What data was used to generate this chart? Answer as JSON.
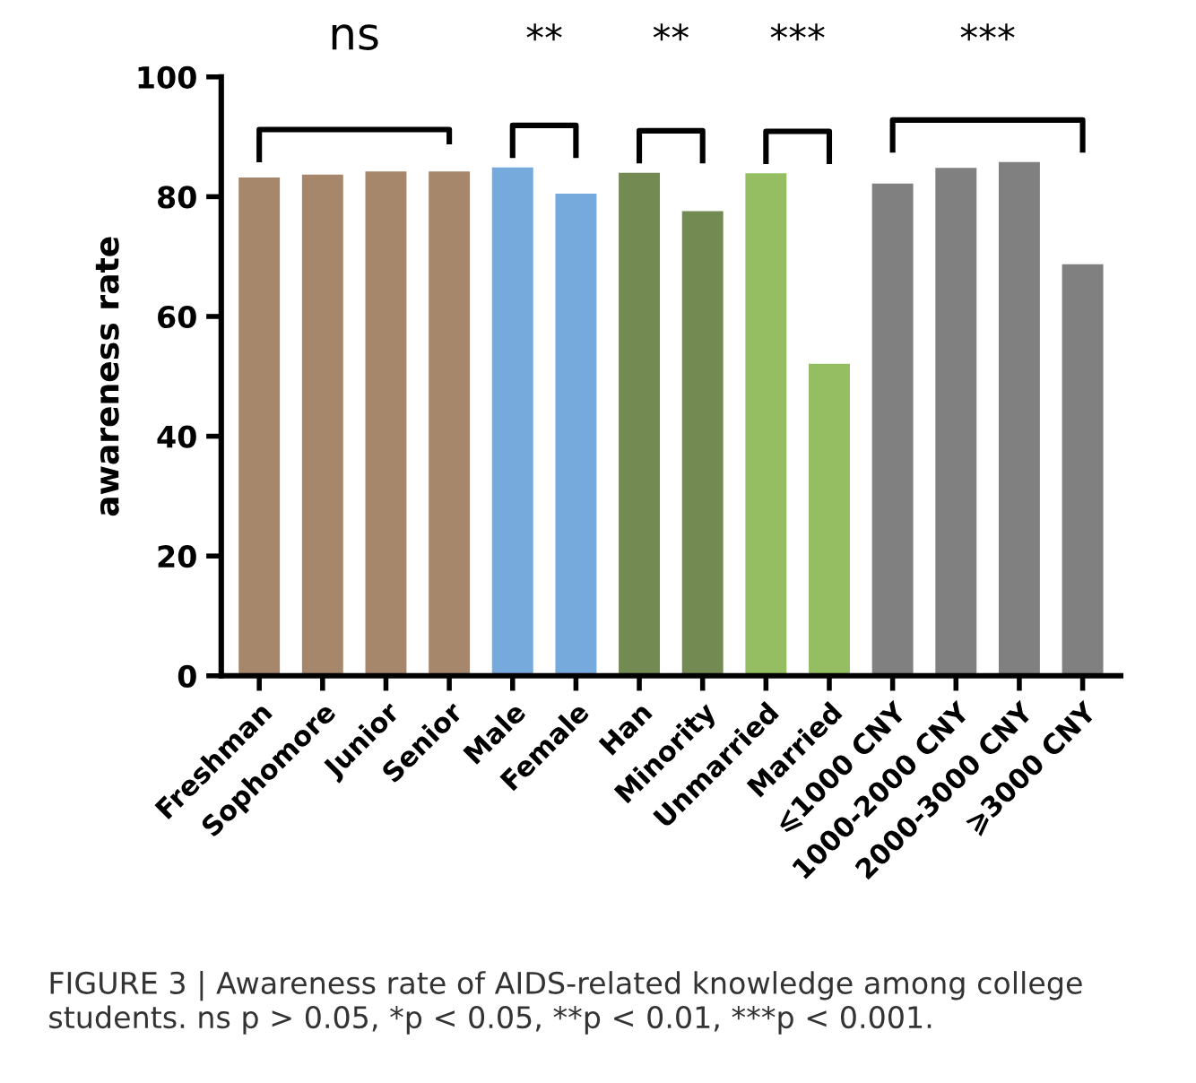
{
  "chart_data": {
    "type": "bar",
    "ylabel": "awareness rate",
    "categories": [
      "Freshman",
      "Sophomore",
      "Junior",
      "Senior",
      "Male",
      "Female",
      "Han",
      "Minority",
      "Unmarried",
      "Married",
      "⩽1000 CNY",
      "1000-2000 CNY",
      "2000-3000 CNY",
      "⩾3000 CNY"
    ],
    "values": [
      83.2,
      83.7,
      84.2,
      84.2,
      84.9,
      80.5,
      84.0,
      77.6,
      83.9,
      52.1,
      82.2,
      84.8,
      85.8,
      68.7
    ],
    "colors": [
      "#a6876b",
      "#a6876b",
      "#a6876b",
      "#a6876b",
      "#76a9dc",
      "#76a9dc",
      "#738a52",
      "#738a52",
      "#95be62",
      "#95be62",
      "#808080",
      "#808080",
      "#808080",
      "#808080"
    ],
    "ylim": [
      0,
      100
    ],
    "yticks": [
      0,
      20,
      40,
      60,
      80,
      100
    ],
    "grid": false,
    "legend": false,
    "annotations": [
      "ns",
      "**",
      "**",
      "***",
      "***",
      "FIGURE 3 | Awareness rate of AIDS-related knowledge among college students. ns p > 0.05, *p < 0.05, **p < 0.01, ***p < 0.001."
    ]
  }
}
